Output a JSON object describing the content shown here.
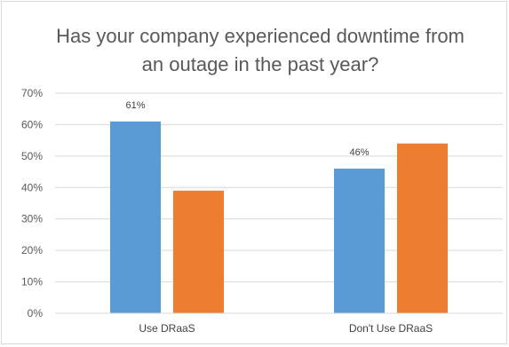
{
  "chart_data": {
    "type": "bar",
    "title_lines": [
      "Has your company experienced downtime from",
      "an outage in the past year?"
    ],
    "xlabel": "",
    "ylabel": "",
    "categories": [
      "Use DRaaS",
      "Don't Use DRaaS"
    ],
    "series": [
      {
        "color": "#5b9bd5",
        "values": [
          61,
          46
        ],
        "data_labels": [
          "61%",
          "46%"
        ]
      },
      {
        "color": "#ed7d31",
        "values": [
          39,
          54
        ],
        "data_labels": [
          "",
          ""
        ]
      }
    ],
    "ylim": [
      0,
      70
    ],
    "yticks": [
      0,
      10,
      20,
      30,
      40,
      50,
      60,
      70
    ],
    "ytick_labels": [
      "0%",
      "10%",
      "20%",
      "30%",
      "40%",
      "50%",
      "60%",
      "70%"
    ],
    "grid": true,
    "legend": "none"
  }
}
